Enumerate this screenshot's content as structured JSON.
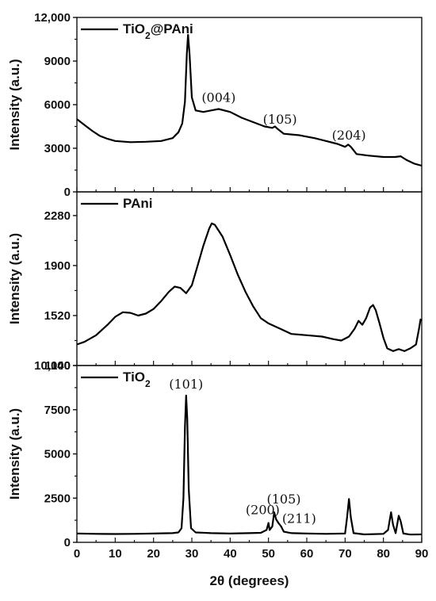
{
  "chart_data": [
    {
      "type": "line",
      "series": [
        {
          "name": "TiO2@PAni",
          "points": [
            [
              0,
              5000
            ],
            [
              2,
              4600
            ],
            [
              4,
              4200
            ],
            [
              6,
              3850
            ],
            [
              8,
              3650
            ],
            [
              10,
              3500
            ],
            [
              14,
              3420
            ],
            [
              18,
              3450
            ],
            [
              22,
              3500
            ],
            [
              25,
              3700
            ],
            [
              26.5,
              4100
            ],
            [
              27.5,
              4700
            ],
            [
              28.2,
              6200
            ],
            [
              28.7,
              9500
            ],
            [
              29,
              10800
            ],
            [
              29.4,
              9500
            ],
            [
              30,
              6500
            ],
            [
              31,
              5600
            ],
            [
              33,
              5500
            ],
            [
              35,
              5600
            ],
            [
              37,
              5700
            ],
            [
              40,
              5500
            ],
            [
              43,
              5100
            ],
            [
              46,
              4800
            ],
            [
              49,
              4500
            ],
            [
              51,
              4400
            ],
            [
              51.7,
              4500
            ],
            [
              52.3,
              4350
            ],
            [
              54,
              4000
            ],
            [
              56,
              3950
            ],
            [
              58,
              3900
            ],
            [
              62,
              3700
            ],
            [
              65,
              3500
            ],
            [
              68,
              3300
            ],
            [
              70,
              3100
            ],
            [
              70.8,
              3250
            ],
            [
              71.5,
              3100
            ],
            [
              73,
              2600
            ],
            [
              76,
              2500
            ],
            [
              80,
              2400
            ],
            [
              83,
              2400
            ],
            [
              84.5,
              2450
            ],
            [
              86,
              2200
            ],
            [
              88,
              1950
            ],
            [
              90,
              1800
            ]
          ]
        }
      ],
      "legend": "TiO₂@PAni",
      "ylabel": "Intensity (a.u.)",
      "yticks": [
        "0",
        "3000",
        "6000",
        "9000",
        "12,000"
      ],
      "ylim": [
        0,
        12000
      ],
      "annotations": [
        {
          "text": "(004)",
          "x": 37,
          "y": 6200
        },
        {
          "text": "(105)",
          "x": 53,
          "y": 4700
        },
        {
          "text": "(204)",
          "x": 71,
          "y": 3600
        }
      ]
    },
    {
      "type": "line",
      "series": [
        {
          "name": "PAni",
          "points": [
            [
              0,
              1300
            ],
            [
              2,
              1320
            ],
            [
              5,
              1370
            ],
            [
              8,
              1450
            ],
            [
              10,
              1510
            ],
            [
              12,
              1545
            ],
            [
              14,
              1540
            ],
            [
              16,
              1520
            ],
            [
              18,
              1535
            ],
            [
              20,
              1570
            ],
            [
              22,
              1630
            ],
            [
              24,
              1700
            ],
            [
              25.5,
              1740
            ],
            [
              27,
              1730
            ],
            [
              28.5,
              1690
            ],
            [
              30,
              1750
            ],
            [
              31.5,
              1900
            ],
            [
              33,
              2050
            ],
            [
              34.5,
              2180
            ],
            [
              35.2,
              2220
            ],
            [
              36,
              2210
            ],
            [
              38,
              2120
            ],
            [
              40,
              1980
            ],
            [
              42,
              1830
            ],
            [
              44,
              1700
            ],
            [
              46,
              1590
            ],
            [
              48,
              1500
            ],
            [
              50,
              1460
            ],
            [
              53,
              1420
            ],
            [
              56,
              1380
            ],
            [
              60,
              1370
            ],
            [
              64,
              1360
            ],
            [
              67,
              1340
            ],
            [
              69,
              1330
            ],
            [
              71,
              1360
            ],
            [
              72.5,
              1420
            ],
            [
              73.5,
              1480
            ],
            [
              74.5,
              1450
            ],
            [
              75.5,
              1500
            ],
            [
              76.5,
              1580
            ],
            [
              77.3,
              1600
            ],
            [
              78,
              1560
            ],
            [
              79,
              1460
            ],
            [
              80,
              1350
            ],
            [
              81,
              1270
            ],
            [
              82.5,
              1250
            ],
            [
              84,
              1265
            ],
            [
              85.5,
              1250
            ],
            [
              87,
              1270
            ],
            [
              88.5,
              1300
            ],
            [
              89.3,
              1420
            ],
            [
              89.7,
              1490
            ],
            [
              90,
              1480
            ]
          ]
        }
      ],
      "legend": "PAni",
      "ylabel": "Intensity (a.u.)",
      "yticks": [
        "1140",
        "1520",
        "1900",
        "2280"
      ],
      "ylim": [
        1140,
        2460
      ]
    },
    {
      "type": "line",
      "series": [
        {
          "name": "TiO2",
          "points": [
            [
              0,
              500
            ],
            [
              5,
              480
            ],
            [
              10,
              470
            ],
            [
              15,
              480
            ],
            [
              20,
              500
            ],
            [
              25,
              520
            ],
            [
              26.5,
              560
            ],
            [
              27.3,
              800
            ],
            [
              27.8,
              2500
            ],
            [
              28.2,
              6500
            ],
            [
              28.5,
              8300
            ],
            [
              28.8,
              7000
            ],
            [
              29.2,
              3000
            ],
            [
              29.8,
              800
            ],
            [
              31,
              560
            ],
            [
              35,
              520
            ],
            [
              40,
              500
            ],
            [
              45,
              520
            ],
            [
              48,
              540
            ],
            [
              49.5,
              700
            ],
            [
              50,
              1100
            ],
            [
              50.3,
              700
            ],
            [
              51,
              900
            ],
            [
              51.5,
              1700
            ],
            [
              52,
              1300
            ],
            [
              52.6,
              1100
            ],
            [
              53.3,
              900
            ],
            [
              54,
              600
            ],
            [
              56,
              520
            ],
            [
              60,
              500
            ],
            [
              65,
              480
            ],
            [
              70,
              500
            ],
            [
              70.5,
              1400
            ],
            [
              71,
              2450
            ],
            [
              71.5,
              1400
            ],
            [
              72.2,
              520
            ],
            [
              75,
              450
            ],
            [
              80,
              480
            ],
            [
              81.2,
              700
            ],
            [
              82,
              1700
            ],
            [
              82.5,
              1000
            ],
            [
              83.2,
              520
            ],
            [
              84,
              1500
            ],
            [
              84.5,
              1200
            ],
            [
              85.2,
              500
            ],
            [
              87,
              440
            ],
            [
              90,
              450
            ]
          ]
        }
      ],
      "legend": "TiO₂",
      "ylabel": "Intensity (a.u.)",
      "yticks": [
        "0",
        "2500",
        "5000",
        "7500",
        "10,000"
      ],
      "ylim": [
        0,
        10000
      ],
      "annotations": [
        {
          "text": "(101)",
          "x": 28.5,
          "y": 8700
        },
        {
          "text": "(200)",
          "x": 48.5,
          "y": 1600
        },
        {
          "text": "(105)",
          "x": 54,
          "y": 2200
        },
        {
          "text": "(211)",
          "x": 58,
          "y": 1100
        }
      ]
    }
  ],
  "shared_x": {
    "xlabel": "2θ (degrees)",
    "xticks": [
      "0",
      "10",
      "20",
      "30",
      "40",
      "50",
      "60",
      "70",
      "80",
      "90"
    ],
    "xlim": [
      0,
      90
    ]
  }
}
